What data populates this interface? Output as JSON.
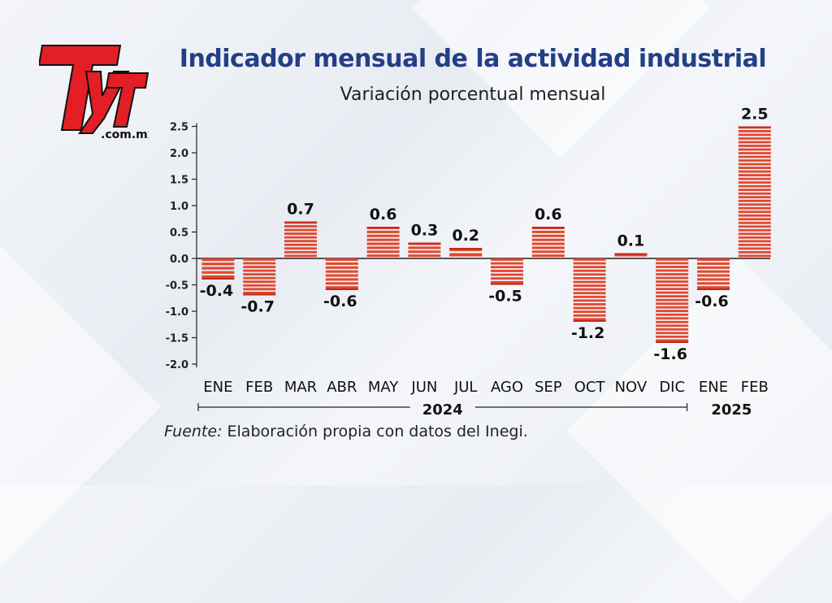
{
  "header": {
    "title": "Indicador mensual de la actividad industrial",
    "subtitle": "Variación porcentual mensual"
  },
  "logo": {
    "main": "TyT",
    "domain": ".com.mx",
    "color": "#e31e25"
  },
  "footer": {
    "source_label": "Fuente:",
    "source_text": " Elaboración propia con datos del Inegi."
  },
  "chart_data": {
    "type": "bar",
    "title": "Indicador mensual de la actividad industrial",
    "subtitle": "Variación porcentual mensual",
    "categories": [
      "ENE",
      "FEB",
      "MAR",
      "ABR",
      "MAY",
      "JUN",
      "JUL",
      "AGO",
      "SEP",
      "OCT",
      "NOV",
      "DIC",
      "ENE",
      "FEB"
    ],
    "year_groups": [
      {
        "label": "2024",
        "from": 0,
        "to": 11
      },
      {
        "label": "2025",
        "from": 12,
        "to": 13
      }
    ],
    "values": [
      -0.4,
      -0.7,
      0.7,
      -0.6,
      0.6,
      0.3,
      0.2,
      -0.5,
      0.6,
      -1.2,
      0.1,
      -1.6,
      -0.6,
      2.5
    ],
    "value_labels": [
      "-0.4",
      "-0.7",
      "0.7",
      "-0.6",
      "0.6",
      "0.3",
      "0.2",
      "-0.5",
      "0.6",
      "-1.2",
      "0.1",
      "-1.6",
      "-0.6",
      "2.5"
    ],
    "yticks": [
      "2.5",
      "2.0",
      "1.5",
      "1.0",
      "0.5",
      "0.0",
      "-0.5",
      "-1.0",
      "-1.5",
      "-2.0"
    ],
    "ylim": [
      -2.0,
      2.5
    ],
    "xlabel": "",
    "ylabel": "",
    "bar_color": "#e2472f",
    "bar_color_dark": "#c2291c",
    "axis_color": "#222222",
    "grid": false
  }
}
